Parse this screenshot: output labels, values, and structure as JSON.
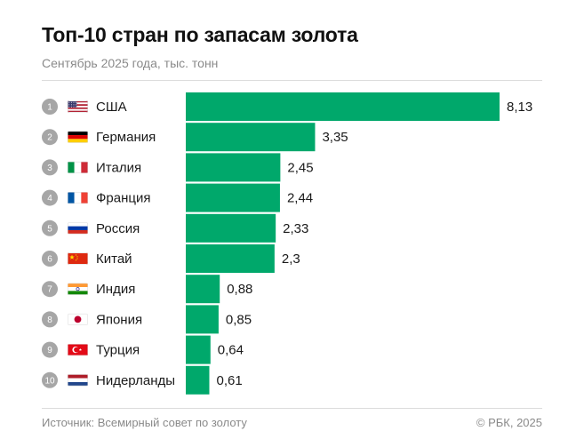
{
  "header": {
    "title": "Топ-10 стран по запасам золота",
    "subtitle": "Сентябрь 2025 года, тыс. тонн"
  },
  "footer": {
    "source": "Источник: Всемирный совет по золоту",
    "copyright": "© РБК, 2025"
  },
  "colors": {
    "bar": "#00a86b",
    "rank_badge": "#a6a6a6",
    "rank_text": "#ffffff"
  },
  "chart_data": {
    "type": "bar",
    "orientation": "horizontal",
    "categories": [
      "США",
      "Германия",
      "Италия",
      "Франция",
      "Россия",
      "Китай",
      "Индия",
      "Япония",
      "Турция",
      "Нидерланды"
    ],
    "ranks": [
      "1",
      "2",
      "3",
      "4",
      "5",
      "6",
      "7",
      "8",
      "9",
      "10"
    ],
    "values": [
      8.13,
      3.35,
      2.45,
      2.44,
      2.33,
      2.3,
      0.88,
      0.85,
      0.64,
      0.61
    ],
    "value_labels": [
      "8,13",
      "3,35",
      "2,45",
      "2,44",
      "2,33",
      "2,3",
      "0,88",
      "0,85",
      "0,64",
      "0,61"
    ],
    "flags": [
      "us-flag-icon",
      "de-flag-icon",
      "it-flag-icon",
      "fr-flag-icon",
      "ru-flag-icon",
      "cn-flag-icon",
      "in-flag-icon",
      "jp-flag-icon",
      "tr-flag-icon",
      "nl-flag-icon"
    ],
    "xlim": [
      0,
      8.13
    ],
    "grid": false,
    "legend": "none"
  }
}
